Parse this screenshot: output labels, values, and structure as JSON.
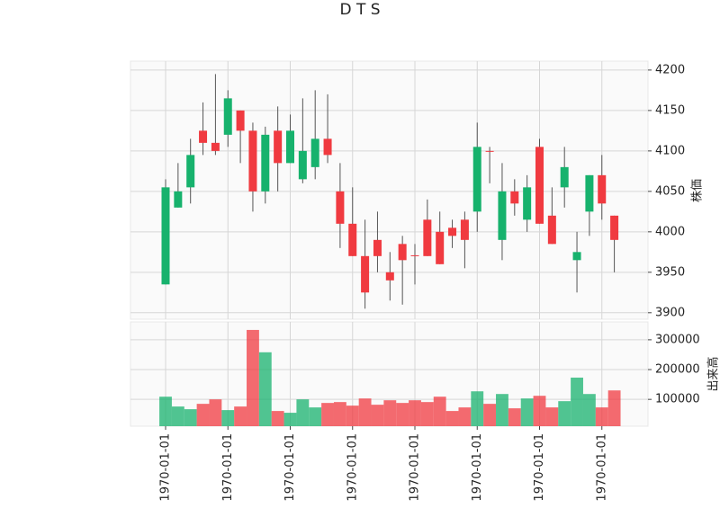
{
  "chart_data": {
    "type": "candlestick",
    "title": "D T S",
    "ylabel": "株価",
    "categories": [
      "1970-01-01",
      null,
      null,
      null,
      null,
      "1970-01-01",
      null,
      null,
      null,
      null,
      "1970-01-01",
      null,
      null,
      null,
      null,
      "1970-01-01",
      null,
      null,
      null,
      null,
      "1970-01-01",
      null,
      null,
      null,
      null,
      "1970-01-01",
      null,
      null,
      null,
      null,
      "1970-01-01",
      null,
      null,
      null,
      null,
      "1970-01-01",
      null
    ],
    "open": [
      3935,
      4030,
      4055,
      4125,
      4110,
      4120,
      4150,
      4125,
      4050,
      4125,
      4085,
      4065,
      4080,
      4115,
      4050,
      4010,
      3970,
      3990,
      3950,
      3985,
      3971,
      4015,
      4000,
      4005,
      4015,
      4025,
      4100,
      3990,
      4050,
      4015,
      4105,
      4020,
      4055,
      3965,
      4025,
      4070,
      4020
    ],
    "high": [
      4065,
      4085,
      4115,
      4160,
      4195,
      4175,
      4150,
      4135,
      4130,
      4155,
      4145,
      4165,
      4175,
      4170,
      4085,
      4055,
      4015,
      4025,
      3975,
      3995,
      3985,
      4040,
      4025,
      4015,
      4025,
      4135,
      4105,
      4085,
      4065,
      4070,
      4115,
      4055,
      4105,
      4000,
      4070,
      4095,
      4020
    ],
    "low": [
      3935,
      4030,
      4035,
      4095,
      4095,
      4105,
      4085,
      4025,
      4035,
      4050,
      4085,
      4060,
      4065,
      4085,
      3980,
      3970,
      3905,
      3950,
      3915,
      3910,
      3935,
      3970,
      3960,
      3980,
      3955,
      4000,
      4060,
      3965,
      4020,
      4000,
      4010,
      3985,
      4030,
      3925,
      3995,
      4015,
      3950
    ],
    "close": [
      4055,
      4050,
      4095,
      4110,
      4100,
      4165,
      4125,
      4050,
      4120,
      4085,
      4125,
      4100,
      4115,
      4095,
      4010,
      3970,
      3925,
      3970,
      3940,
      3965,
      3970,
      3970,
      3960,
      3995,
      3990,
      4105,
      4099,
      4050,
      4035,
      4055,
      4010,
      3985,
      4080,
      3975,
      4070,
      4035,
      3990
    ],
    "ylim": [
      3892,
      4211
    ],
    "yticks": [
      3900,
      3950,
      4000,
      4050,
      4100,
      4150,
      4200
    ],
    "up_color": "#17b26d",
    "down_color": "#f03a40",
    "grid": true,
    "volume": {
      "ylabel": "出来高",
      "values": [
        109000,
        76000,
        67000,
        85000,
        100000,
        64000,
        76000,
        333000,
        258000,
        61000,
        55000,
        100000,
        73000,
        88000,
        91000,
        79000,
        103000,
        82000,
        97000,
        88000,
        97000,
        91000,
        109000,
        61000,
        73000,
        127000,
        85000,
        118000,
        70000,
        103000,
        112000,
        73000,
        94000,
        173000,
        118000,
        73000,
        130000
      ],
      "ylim": [
        10000,
        360000
      ],
      "yticks": [
        100000,
        200000,
        300000
      ]
    }
  }
}
